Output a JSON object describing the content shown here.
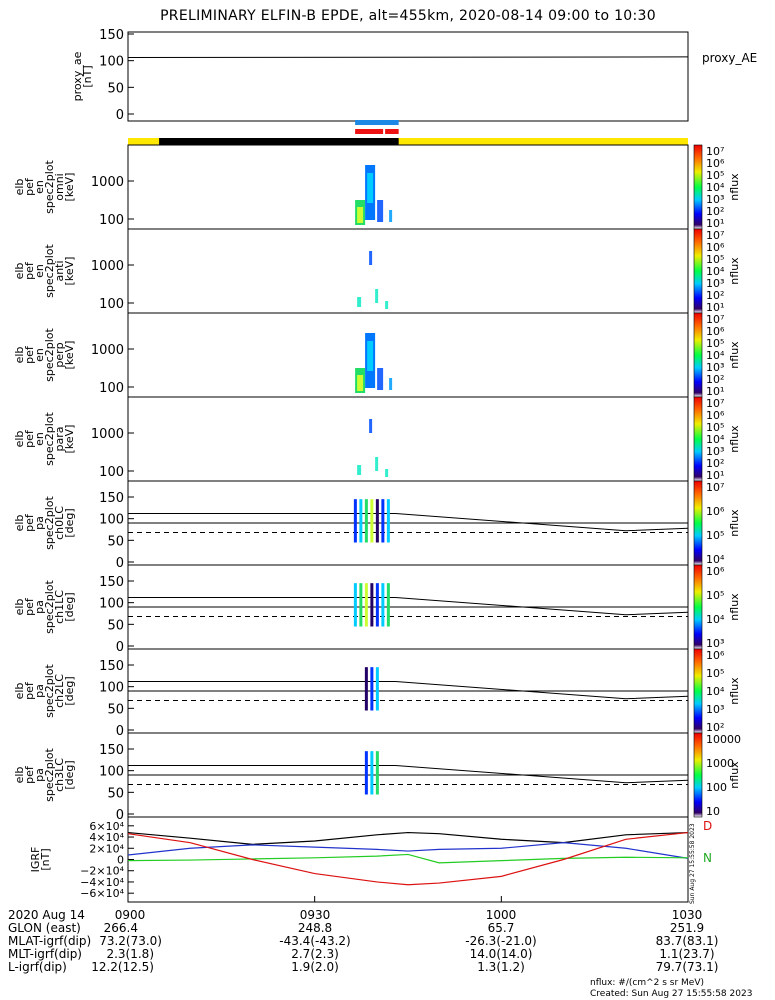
{
  "title": "PRELIMINARY ELFIN-B EPDE, alt=455km, 2020-08-14 09:00 to 10:30",
  "side_stamp": "Sun Aug 27 15:55:58 2023",
  "colors": {
    "yellow": "#ffe800",
    "black": "#000000",
    "blue": "#1e88e5",
    "red": "#ee1111",
    "bx": "#2222cc",
    "by": "#22cc22",
    "bz": "#dd1111",
    "bt": "#000000"
  },
  "chart_data": [
    {
      "type": "line",
      "ylabel": "proxy_ae\n[nT]",
      "legend": "proxy_AE",
      "yticks": [
        "150",
        "100",
        "50",
        "0"
      ],
      "ylim": [
        0,
        160
      ],
      "x": [
        0,
        90
      ],
      "values": [
        106,
        107
      ]
    },
    {
      "type": "bar",
      "name": "orbit-status-bars",
      "segments": [
        {
          "color": "yellow",
          "start_min": 0,
          "end_min": 90,
          "row": "base"
        },
        {
          "color": "black",
          "start_min": 5,
          "end_min": 43.5,
          "row": "base"
        },
        {
          "color": "blue",
          "start_min": 36.5,
          "end_min": 43.5,
          "row": "top"
        },
        {
          "color": "red",
          "start_min": 36.5,
          "end_min": 43.5,
          "row": "mid"
        }
      ]
    },
    {
      "type": "heatmap",
      "ylabel": "elb\npef\nen\nspec2plot\nomni\n[keV]",
      "yticks": [
        "1000",
        "100"
      ],
      "yrange_keV": [
        60,
        7000
      ],
      "colorbar": {
        "min": "10",
        "max": "10^7",
        "label": "nflux",
        "ticks": [
          "10⁷",
          "10⁶",
          "10⁵",
          "10⁴",
          "10³",
          "10²",
          "10¹"
        ]
      }
    },
    {
      "type": "heatmap",
      "ylabel": "elb\npef\nen\nspec2plot\nanti\n[keV]",
      "yticks": [
        "1000",
        "100"
      ],
      "colorbar": {
        "label": "nflux",
        "ticks": [
          "10⁷",
          "10⁶",
          "10⁵",
          "10⁴",
          "10³",
          "10²",
          "10¹"
        ]
      }
    },
    {
      "type": "heatmap",
      "ylabel": "elb\npef\nen\nspec2plot\nperp\n[keV]",
      "yticks": [
        "1000",
        "100"
      ],
      "colorbar": {
        "label": "nflux",
        "ticks": [
          "10⁷",
          "10⁶",
          "10⁵",
          "10⁴",
          "10³",
          "10²",
          "10¹"
        ]
      }
    },
    {
      "type": "heatmap",
      "ylabel": "elb\npef\nen\nspec2plot\npara\n[keV]",
      "yticks": [
        "1000",
        "100"
      ],
      "colorbar": {
        "label": "nflux",
        "ticks": [
          "10⁷",
          "10⁶",
          "10⁵",
          "10⁴",
          "10³",
          "10²",
          "10¹"
        ]
      }
    },
    {
      "type": "heatmap",
      "ylabel": "elb\npef\npa\nspec2plot\nch0LC\n[deg]",
      "yticks": [
        "150",
        "100",
        "50",
        "0"
      ],
      "ylim": [
        0,
        180
      ],
      "colorbar": {
        "label": "nflux",
        "ticks": [
          "10⁷",
          "10⁶",
          "10⁵",
          "10⁴"
        ]
      }
    },
    {
      "type": "heatmap",
      "ylabel": "elb\npef\npa\nspec2plot\nch1LC\n[deg]",
      "yticks": [
        "150",
        "100",
        "50",
        "0"
      ],
      "ylim": [
        0,
        180
      ],
      "colorbar": {
        "label": "nflux",
        "ticks": [
          "10⁶",
          "10⁵",
          "10⁴",
          "10³"
        ]
      }
    },
    {
      "type": "heatmap",
      "ylabel": "elb\npef\npa\nspec2plot\nch2LC\n[deg]",
      "yticks": [
        "150",
        "100",
        "50",
        "0"
      ],
      "ylim": [
        0,
        180
      ],
      "colorbar": {
        "label": "nflux",
        "ticks": [
          "10⁶",
          "10⁵",
          "10⁴",
          "10³",
          "10²"
        ]
      }
    },
    {
      "type": "heatmap",
      "ylabel": "elb\npef\npa\nspec2plot\nch3LC\n[deg]",
      "yticks": [
        "150",
        "100",
        "50",
        "0"
      ],
      "ylim": [
        0,
        180
      ],
      "colorbar": {
        "label": "nflux",
        "ticks": [
          "10000",
          "1000",
          "100",
          "10"
        ]
      }
    },
    {
      "type": "line",
      "ylabel": "IGRF\n[nT]",
      "yticks": [
        "6×10⁴",
        "4×10⁴",
        "2×10⁴",
        "0",
        "−2×10⁴",
        "−4×10⁴",
        "−6×10⁴"
      ],
      "ylim": [
        -65000,
        65000
      ],
      "legend": [
        "D",
        "N"
      ],
      "x": [
        0,
        10,
        20,
        30,
        40,
        45,
        50,
        60,
        70,
        80,
        90
      ],
      "series": [
        {
          "name": "black",
          "values": [
            48000,
            38000,
            27000,
            33000,
            44000,
            48000,
            46000,
            36000,
            30000,
            44000,
            48000
          ]
        },
        {
          "name": "blue",
          "values": [
            8000,
            20000,
            26000,
            22000,
            18000,
            15000,
            18000,
            20000,
            30000,
            20000,
            2000
          ]
        },
        {
          "name": "green",
          "values": [
            -2000,
            -1000,
            1000,
            3000,
            6000,
            9000,
            -6000,
            -2000,
            2000,
            4000,
            3000
          ]
        },
        {
          "name": "red",
          "values": [
            46000,
            30000,
            0,
            -25000,
            -40000,
            -45000,
            -42000,
            -30000,
            0,
            36000,
            48000
          ]
        }
      ]
    }
  ],
  "footer": {
    "rows": [
      {
        "label": "2020 Aug 14",
        "values": [
          "0900",
          "0930",
          "1000",
          "1030"
        ]
      },
      {
        "label": "GLON (east)",
        "values": [
          "266.4",
          "248.8",
          "65.7",
          "251.9"
        ]
      },
      {
        "label": "MLAT-igrf(dip)",
        "values": [
          "73.2(73.0)",
          "-43.4(-43.2)",
          "-26.3(-21.0)",
          "83.7(83.1)"
        ]
      },
      {
        "label": "MLT-igrf(dip)",
        "values": [
          "2.3(1.8)",
          "2.7(2.3)",
          "14.0(14.0)",
          "1.1(23.7)"
        ]
      },
      {
        "label": "L-igrf(dip)",
        "values": [
          "12.2(12.5)",
          "1.9(2.0)",
          "1.3(1.2)",
          "79.7(73.1)"
        ]
      }
    ],
    "unit_note": "nflux: #/(cm^2 s sr MeV)",
    "created": "Created: Sun Aug 27 15:55:58 2023"
  }
}
